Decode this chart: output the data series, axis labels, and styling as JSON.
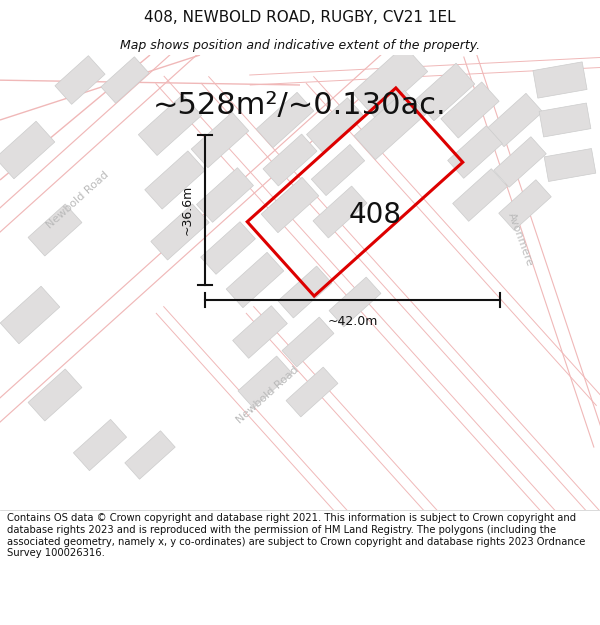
{
  "title": "408, NEWBOLD ROAD, RUGBY, CV21 1EL",
  "subtitle": "Map shows position and indicative extent of the property.",
  "area_text": "~528m²/~0.130ac.",
  "label_408": "408",
  "dim_width": "~42.0m",
  "dim_height": "~36.6m",
  "footer": "Contains OS data © Crown copyright and database right 2021. This information is subject to Crown copyright and database rights 2023 and is reproduced with the permission of HM Land Registry. The polygons (including the associated geometry, namely x, y co-ordinates) are subject to Crown copyright and database rights 2023 Ordnance Survey 100026316.",
  "map_bg": "#f9f8f8",
  "road_color": "#f0b8b8",
  "road_lw": 1.0,
  "building_color": "#e0dede",
  "building_ec": "#cccccc",
  "plot_color": "#dd0000",
  "plot_lw": 2.2,
  "dim_color": "#111111",
  "text_color": "#111111",
  "road_label_color": "#aaaaaa",
  "title_fontsize": 11,
  "subtitle_fontsize": 9,
  "area_fontsize": 22,
  "label_fontsize": 20,
  "dim_fontsize": 9,
  "footer_fontsize": 7.2,
  "road_label_fontsize": 8,
  "newbold_road_label_color": "#bbbbbb",
  "avonmere_label_color": "#bbbbbb"
}
